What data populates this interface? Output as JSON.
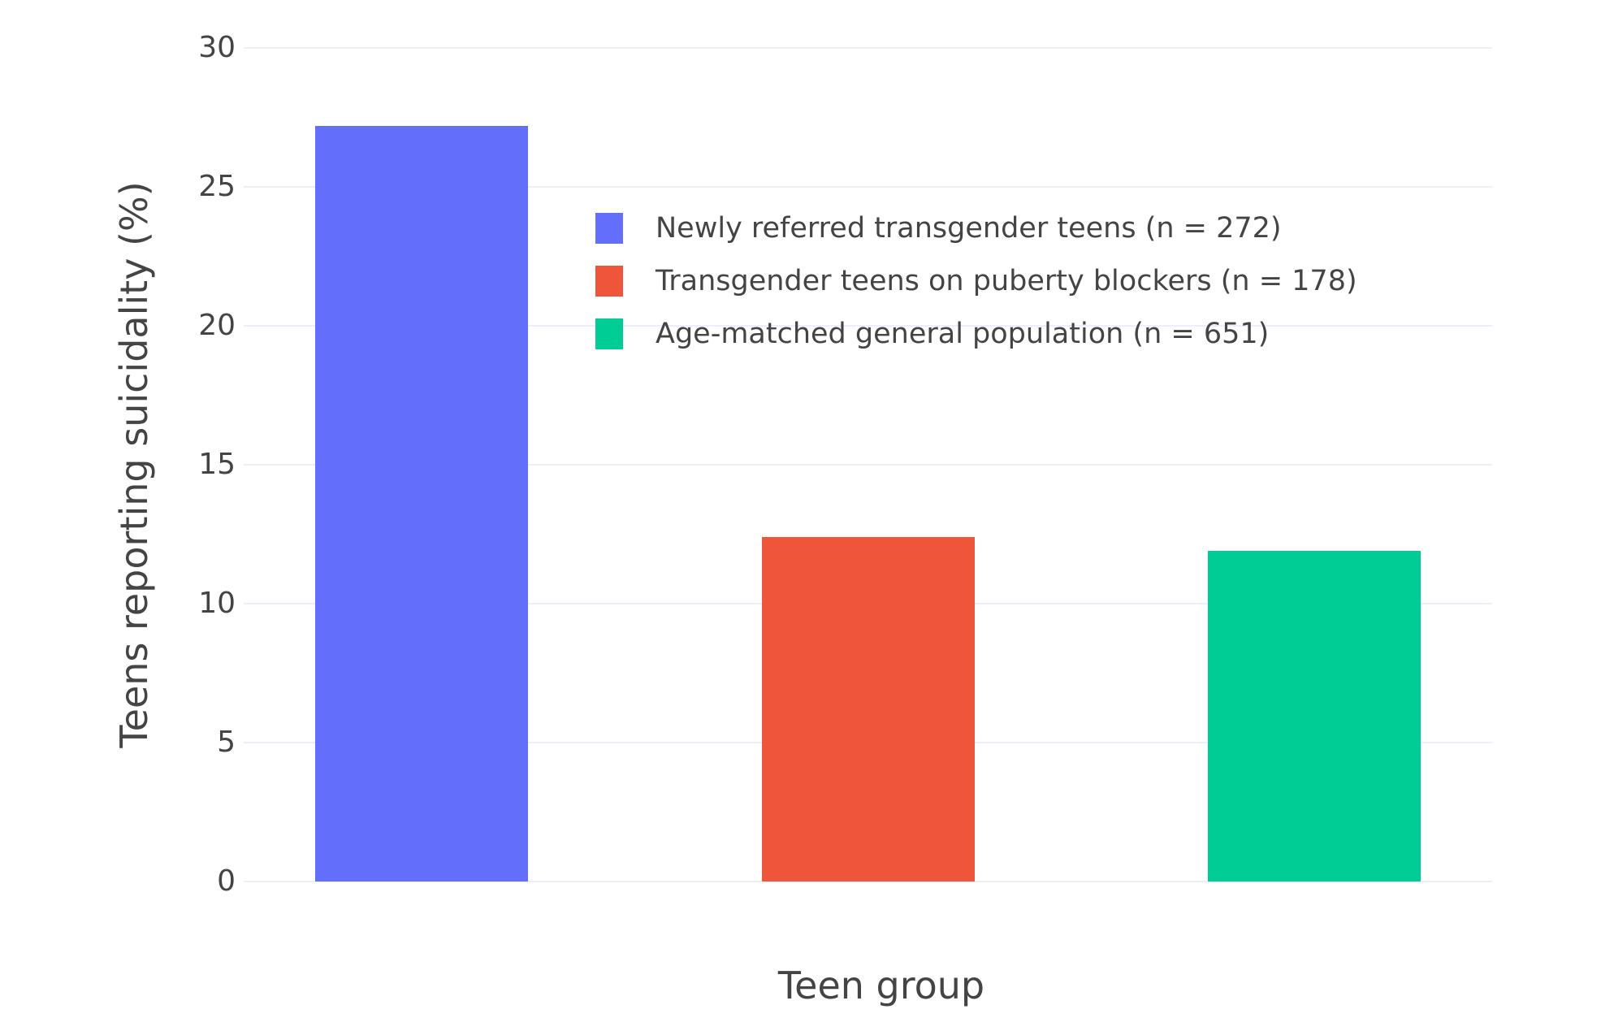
{
  "chart_data": {
    "type": "bar",
    "title": "",
    "xlabel": "Teen group",
    "ylabel": "Teens reporting suicidality (%)",
    "categories": [
      "Newly referred transgender teens (n = 272)",
      "Transgender teens on puberty blockers (n = 178)",
      "Age-matched general population (n = 651)"
    ],
    "values": [
      27.2,
      12.4,
      11.9
    ],
    "colors": [
      "#636EFA",
      "#EF553B",
      "#00CC96"
    ],
    "ylim": [
      0,
      30
    ],
    "yticks": [
      0,
      5,
      10,
      15,
      20,
      25,
      30
    ],
    "grid": true,
    "legend_position": "inside top-left of plot",
    "style": {
      "background_color": "#ffffff",
      "grid_color": "#EBF0F8",
      "text_color": "#444444"
    }
  }
}
